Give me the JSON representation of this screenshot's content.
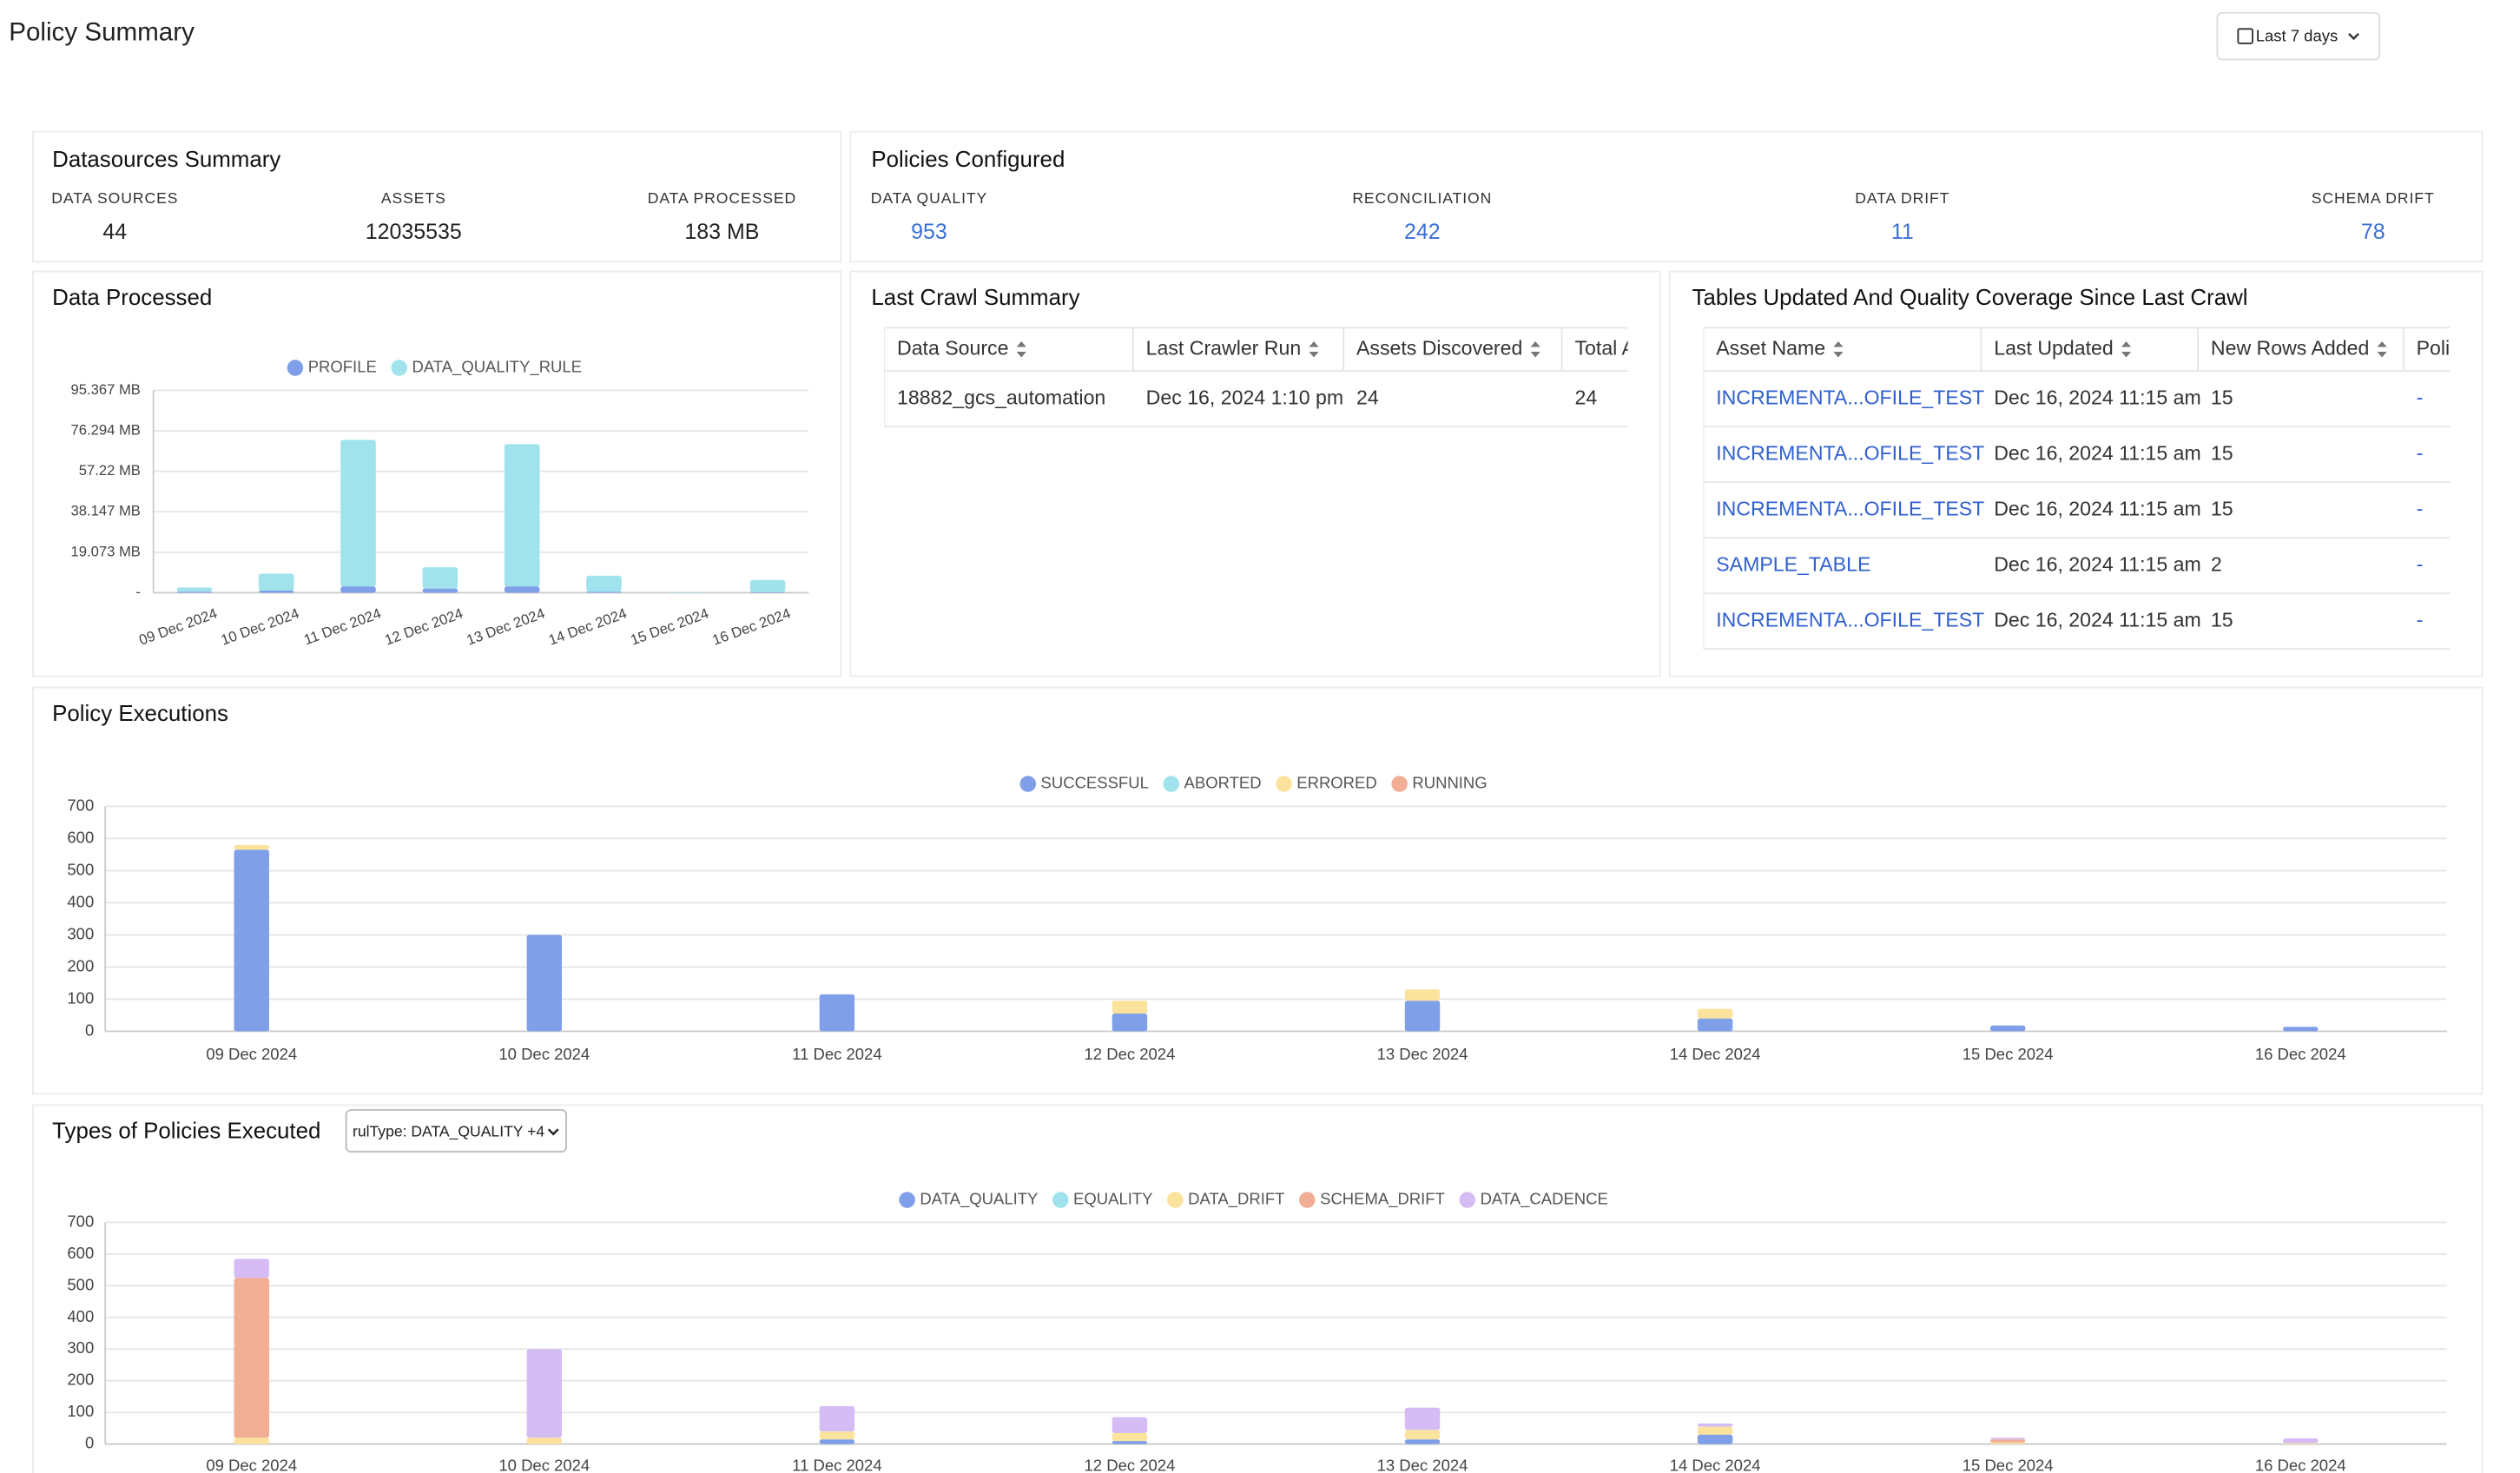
{
  "header": {
    "title": "Policy Summary",
    "date_filter": "Last 7 days"
  },
  "datasources_summary": {
    "title": "Datasources Summary",
    "stats": [
      {
        "label": "DATA SOURCES",
        "value": 44
      },
      {
        "label": "ASSETS",
        "value": 12035535
      },
      {
        "label": "DATA PROCESSED",
        "value": "183 MB"
      }
    ]
  },
  "policies_configured": {
    "title": "Policies Configured",
    "stats": [
      {
        "label": "DATA QUALITY",
        "value": 953
      },
      {
        "label": "RECONCILIATION",
        "value": 242
      },
      {
        "label": "DATA DRIFT",
        "value": 11
      },
      {
        "label": "SCHEMA DRIFT",
        "value": 78
      }
    ]
  },
  "last_crawl_summary": {
    "title": "Last Crawl Summary",
    "columns": [
      "Data Source",
      "Last Crawler Run",
      "Assets Discovered",
      "Total A"
    ],
    "rows": [
      [
        "18882_gcs_automation",
        "Dec 16, 2024 1:10 pm",
        24,
        24
      ]
    ]
  },
  "tables_updated": {
    "title": "Tables Updated And Quality Coverage Since Last Crawl",
    "columns": [
      "Asset Name",
      "Last Updated",
      "New Rows Added",
      "Poli"
    ],
    "rows": [
      [
        "INCREMENTA...OFILE_TEST",
        "Dec 16, 2024 11:15 am",
        15,
        "-"
      ],
      [
        "INCREMENTA...OFILE_TEST",
        "Dec 16, 2024 11:15 am",
        15,
        "-"
      ],
      [
        "INCREMENTA...OFILE_TEST",
        "Dec 16, 2024 11:15 am",
        15,
        "-"
      ],
      [
        "SAMPLE_TABLE",
        "Dec 16, 2024 11:15 am",
        2,
        "-"
      ],
      [
        "INCREMENTA...OFILE_TEST",
        "Dec 16, 2024 11:15 am",
        15,
        "-"
      ]
    ]
  },
  "chart_data": [
    {
      "type": "bar",
      "stacked": true,
      "title": "Data Processed",
      "categories": [
        "09 Dec 2024",
        "10 Dec 2024",
        "11 Dec 2024",
        "12 Dec 2024",
        "13 Dec 2024",
        "14 Dec 2024",
        "15 Dec 2024",
        "16 Dec 2024"
      ],
      "series": [
        {
          "name": "PROFILE",
          "color": "#7f9fe8",
          "values": [
            0.5,
            1,
            3,
            2,
            3,
            0.5,
            0,
            0.3
          ]
        },
        {
          "name": "DATA_QUALITY_RULE",
          "color": "#a0e3ec",
          "values": [
            2,
            8,
            69,
            10,
            67,
            7.5,
            0.3,
            5.7
          ]
        }
      ],
      "ylim": [
        0,
        95.367
      ],
      "yticks": [
        {
          "value": 0,
          "label": "-"
        },
        {
          "value": 19.073,
          "label": "19.073 MB"
        },
        {
          "value": 38.147,
          "label": "38.147 MB"
        },
        {
          "value": 57.22,
          "label": "57.22 MB"
        },
        {
          "value": 76.294,
          "label": "76.294 MB"
        },
        {
          "value": 95.367,
          "label": "95.367 MB"
        }
      ],
      "grid": true
    },
    {
      "type": "bar",
      "stacked": true,
      "title": "Policy Executions",
      "categories": [
        "09 Dec 2024",
        "10 Dec 2024",
        "11 Dec 2024",
        "12 Dec 2024",
        "13 Dec 2024",
        "14 Dec 2024",
        "15 Dec 2024",
        "16 Dec 2024"
      ],
      "series": [
        {
          "name": "SUCCESSFUL",
          "color": "#7f9fe8",
          "values": [
            565,
            300,
            115,
            55,
            95,
            40,
            18,
            14
          ]
        },
        {
          "name": "ABORTED",
          "color": "#a0e3ec",
          "values": [
            0,
            0,
            0,
            0,
            0,
            0,
            0,
            0
          ]
        },
        {
          "name": "ERRORED",
          "color": "#fbe39e",
          "values": [
            15,
            0,
            0,
            40,
            35,
            30,
            0,
            0
          ]
        },
        {
          "name": "RUNNING",
          "color": "#f2ad95",
          "values": [
            0,
            0,
            0,
            0,
            0,
            0,
            0,
            0
          ]
        }
      ],
      "ylim": [
        0,
        700
      ],
      "yticks": [
        0,
        100,
        200,
        300,
        400,
        500,
        600,
        700
      ],
      "grid": true
    },
    {
      "type": "bar",
      "stacked": true,
      "title": "Types of Policies Executed",
      "filter": "rulType: DATA_QUALITY +4",
      "categories": [
        "09 Dec 2024",
        "10 Dec 2024",
        "11 Dec 2024",
        "12 Dec 2024",
        "13 Dec 2024",
        "14 Dec 2024",
        "15 Dec 2024",
        "16 Dec 2024"
      ],
      "series": [
        {
          "name": "DATA_QUALITY",
          "color": "#7f9fe8",
          "values": [
            0,
            0,
            15,
            10,
            15,
            30,
            0,
            0
          ]
        },
        {
          "name": "EQUALITY",
          "color": "#a0e3ec",
          "values": [
            0,
            0,
            0,
            0,
            0,
            0,
            0,
            0
          ]
        },
        {
          "name": "DATA_DRIFT",
          "color": "#fbe39e",
          "values": [
            20,
            20,
            25,
            25,
            30,
            25,
            5,
            3
          ]
        },
        {
          "name": "SCHEMA_DRIFT",
          "color": "#f2ad95",
          "values": [
            505,
            0,
            0,
            0,
            0,
            0,
            10,
            0
          ]
        },
        {
          "name": "DATA_CADENCE",
          "color": "#d5bcf5",
          "values": [
            60,
            280,
            80,
            50,
            70,
            10,
            5,
            15
          ]
        }
      ],
      "ylim": [
        0,
        700
      ],
      "yticks": [
        0,
        100,
        200,
        300,
        400,
        500,
        600,
        700
      ],
      "grid": true
    }
  ]
}
